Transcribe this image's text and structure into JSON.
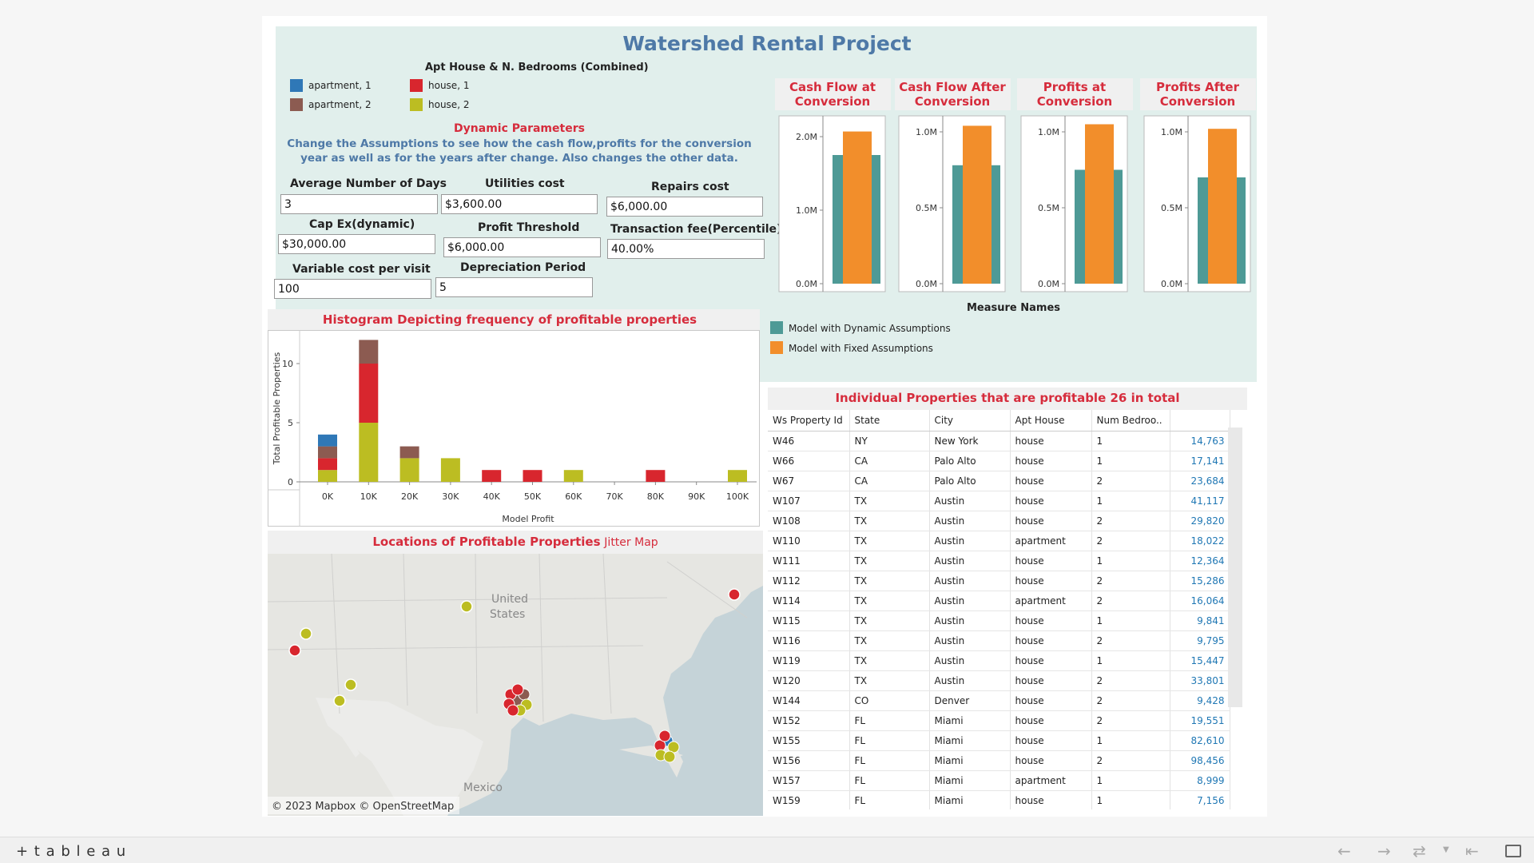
{
  "page_title": "Watershed Rental Project",
  "legend_top": {
    "title": "Apt House & N. Bedrooms (Combined)",
    "items": [
      {
        "label": "apartment, 1",
        "color": "#2f78b7"
      },
      {
        "label": "apartment, 2",
        "color": "#8c5b51"
      },
      {
        "label": "house, 1",
        "color": "#d8262e"
      },
      {
        "label": "house, 2",
        "color": "#bcbd22"
      }
    ]
  },
  "parameters": {
    "heading": "Dynamic Parameters",
    "description": "Change the Assumptions to see how the cash flow,profits for the conversion year as well as  for the years after change. Also changes the other data.",
    "fields": [
      {
        "label": "Average Number of Days",
        "value": "3"
      },
      {
        "label": "Utilities cost",
        "value": "$3,600.00"
      },
      {
        "label": "Repairs cost",
        "value": "$6,000.00"
      },
      {
        "label": "Cap Ex(dynamic)",
        "value": "$30,000.00"
      },
      {
        "label": "Profit Threshold",
        "value": "$6,000.00"
      },
      {
        "label": "Transaction fee(Percentile)",
        "value": "40.00%"
      },
      {
        "label": "Variable cost per visit",
        "value": "100"
      },
      {
        "label": "Depreciation Period",
        "value": "5"
      }
    ]
  },
  "mini_charts": [
    {
      "title_l1": "Cash Flow at",
      "title_l2": "Conversion",
      "ticks": [
        "2.0M",
        "1.0M",
        "0.0M"
      ],
      "ymax": 2.0,
      "dynamic": 1.75,
      "fixed": 2.07
    },
    {
      "title_l1": "Cash Flow After",
      "title_l2": "Conversion",
      "ticks": [
        "1.0M",
        "0.5M",
        "0.0M"
      ],
      "ymax": 1.0,
      "dynamic": 0.78,
      "fixed": 1.04
    },
    {
      "title_l1": "Profits at",
      "title_l2": "Conversion",
      "ticks": [
        "1.0M",
        "0.5M",
        "0.0M"
      ],
      "ymax": 1.0,
      "dynamic": 0.75,
      "fixed": 1.05
    },
    {
      "title_l1": "Profits After",
      "title_l2": "Conversion",
      "ticks": [
        "1.0M",
        "0.5M",
        "0.0M"
      ],
      "ymax": 1.0,
      "dynamic": 0.7,
      "fixed": 1.02
    }
  ],
  "measure_legend": {
    "title": "Measure Names",
    "items": [
      {
        "label": "Model with Dynamic Assumptions",
        "color": "#4e9a96"
      },
      {
        "label": "Model with Fixed Assumptions",
        "color": "#f28e2b"
      }
    ]
  },
  "histogram": {
    "title": "Histogram Depicting frequency of profitable properties",
    "ylabel": "Total Profitable Properties",
    "xlabel": "Model Profit",
    "y_ticks": [
      "10",
      "5",
      "0"
    ],
    "categories": [
      "0K",
      "10K",
      "20K",
      "30K",
      "40K",
      "50K",
      "60K",
      "70K",
      "80K",
      "90K",
      "100K"
    ]
  },
  "chart_data": {
    "type": "bar",
    "stacked": true,
    "categories": [
      "0K",
      "10K",
      "20K",
      "30K",
      "40K",
      "50K",
      "60K",
      "70K",
      "80K",
      "90K",
      "100K"
    ],
    "series": [
      {
        "name": "house, 2",
        "color": "#bcbd22",
        "values": [
          1,
          5,
          2,
          2,
          0,
          0,
          1,
          0,
          0,
          0,
          1
        ]
      },
      {
        "name": "house, 1",
        "color": "#d8262e",
        "values": [
          1,
          5,
          0,
          0,
          1,
          1,
          0,
          0,
          1,
          0,
          0
        ]
      },
      {
        "name": "apartment, 2",
        "color": "#8c5b51",
        "values": [
          1,
          2,
          1,
          0,
          0,
          0,
          0,
          0,
          0,
          0,
          0
        ]
      },
      {
        "name": "apartment, 1",
        "color": "#2f78b7",
        "values": [
          1,
          0,
          0,
          0,
          0,
          0,
          0,
          0,
          0,
          0,
          0
        ]
      }
    ],
    "title": "Histogram Depicting frequency of profitable properties",
    "xlabel": "Model Profit",
    "ylabel": "Total Profitable Properties",
    "ylim": [
      0,
      12.5
    ]
  },
  "map": {
    "title_main": "Locations of Profitable Properties",
    "title_sub": "Jitter Map",
    "label_country_1": "United",
    "label_country_2": "States",
    "label_mexico": "Mexico",
    "attribution": "© 2023 Mapbox  © OpenStreetMap"
  },
  "table": {
    "title": "Individual Properties that are profitable 26 in total",
    "headers": [
      "Ws Property Id",
      "State",
      "City",
      "Apt House",
      "Num Bedroo.."
    ],
    "rows": [
      [
        "W46",
        "NY",
        "New York",
        "house",
        "1",
        "14,763"
      ],
      [
        "W66",
        "CA",
        "Palo Alto",
        "house",
        "1",
        "17,141"
      ],
      [
        "W67",
        "CA",
        "Palo Alto",
        "house",
        "2",
        "23,684"
      ],
      [
        "W107",
        "TX",
        "Austin",
        "house",
        "1",
        "41,117"
      ],
      [
        "W108",
        "TX",
        "Austin",
        "house",
        "2",
        "29,820"
      ],
      [
        "W110",
        "TX",
        "Austin",
        "apartment",
        "2",
        "18,022"
      ],
      [
        "W111",
        "TX",
        "Austin",
        "house",
        "1",
        "12,364"
      ],
      [
        "W112",
        "TX",
        "Austin",
        "house",
        "2",
        "15,286"
      ],
      [
        "W114",
        "TX",
        "Austin",
        "apartment",
        "2",
        "16,064"
      ],
      [
        "W115",
        "TX",
        "Austin",
        "house",
        "1",
        "9,841"
      ],
      [
        "W116",
        "TX",
        "Austin",
        "house",
        "2",
        "9,795"
      ],
      [
        "W119",
        "TX",
        "Austin",
        "house",
        "1",
        "15,447"
      ],
      [
        "W120",
        "TX",
        "Austin",
        "house",
        "2",
        "33,801"
      ],
      [
        "W144",
        "CO",
        "Denver",
        "house",
        "2",
        "9,428"
      ],
      [
        "W152",
        "FL",
        "Miami",
        "house",
        "2",
        "19,551"
      ],
      [
        "W155",
        "FL",
        "Miami",
        "house",
        "1",
        "82,610"
      ],
      [
        "W156",
        "FL",
        "Miami",
        "house",
        "2",
        "98,456"
      ],
      [
        "W157",
        "FL",
        "Miami",
        "apartment",
        "1",
        "8,999"
      ],
      [
        "W159",
        "FL",
        "Miami",
        "house",
        "1",
        "7,156"
      ]
    ]
  },
  "footer": {
    "brand": "+ t a b l e a u"
  }
}
